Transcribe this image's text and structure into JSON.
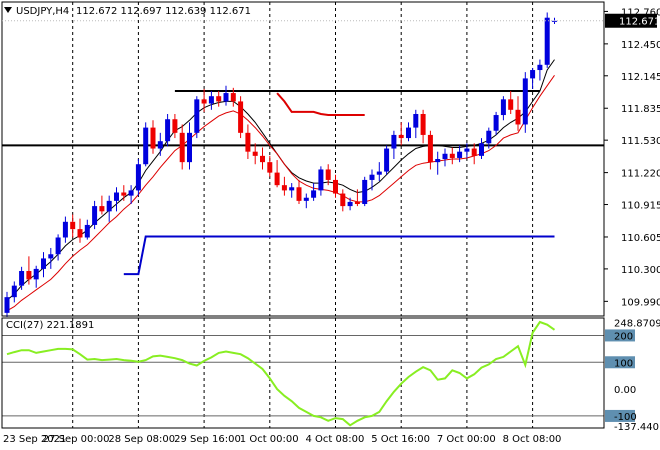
{
  "chart_data": [
    {
      "type": "candlestick",
      "title": "USDJPY,H4",
      "ohlc_label": "112.672 112.697 112.639 112.671",
      "current_price": "112.671",
      "ylim": [
        109.85,
        112.85
      ],
      "y_ticks": [
        "112.760",
        "112.450",
        "112.145",
        "111.835",
        "111.530",
        "111.220",
        "110.915",
        "110.605",
        "110.300",
        "109.990"
      ],
      "x_labels": [
        "23 Sep 2021",
        "27 Sep 00:00",
        "28 Sep 08:00",
        "29 Sep 16:00",
        "1 Oct 00:00",
        "4 Oct 08:00",
        "5 Oct 16:00",
        "7 Oct 00:00",
        "8 Oct 08:00"
      ],
      "horizontal_lines": [
        111.48,
        112.0
      ],
      "bullish_color": "#0000dd",
      "bearish_color": "#ee0000",
      "candles": [
        [
          0,
          109.88,
          110.08,
          109.84,
          110.03
        ],
        [
          1,
          110.03,
          110.18,
          109.98,
          110.14
        ],
        [
          2,
          110.14,
          110.32,
          110.1,
          110.28
        ],
        [
          3,
          110.28,
          110.42,
          110.15,
          110.2
        ],
        [
          4,
          110.2,
          110.33,
          110.12,
          110.3
        ],
        [
          5,
          110.3,
          110.46,
          110.22,
          110.4
        ],
        [
          6,
          110.4,
          110.5,
          110.3,
          110.44
        ],
        [
          7,
          110.44,
          110.63,
          110.38,
          110.6
        ],
        [
          8,
          110.6,
          110.8,
          110.55,
          110.75
        ],
        [
          9,
          110.75,
          110.82,
          110.6,
          110.68
        ],
        [
          10,
          110.68,
          110.78,
          110.55,
          110.6
        ],
        [
          11,
          110.6,
          110.77,
          110.58,
          110.72
        ],
        [
          12,
          110.72,
          110.95,
          110.68,
          110.9
        ],
        [
          13,
          110.9,
          111.0,
          110.82,
          110.85
        ],
        [
          14,
          110.85,
          111.0,
          110.75,
          110.95
        ],
        [
          15,
          110.95,
          111.08,
          110.85,
          111.03
        ],
        [
          16,
          111.03,
          111.1,
          110.95,
          111.0
        ],
        [
          17,
          111.0,
          111.1,
          110.92,
          111.05
        ],
        [
          18,
          111.05,
          111.35,
          111.0,
          111.3
        ],
        [
          19,
          111.3,
          111.7,
          111.28,
          111.65
        ],
        [
          20,
          111.65,
          111.72,
          111.4,
          111.45
        ],
        [
          21,
          111.45,
          111.6,
          111.38,
          111.52
        ],
        [
          22,
          111.52,
          111.78,
          111.47,
          111.73
        ],
        [
          23,
          111.73,
          111.78,
          111.55,
          111.6
        ],
        [
          24,
          111.6,
          111.68,
          111.25,
          111.32
        ],
        [
          25,
          111.32,
          111.7,
          111.25,
          111.6
        ],
        [
          26,
          111.6,
          111.95,
          111.55,
          111.92
        ],
        [
          27,
          111.92,
          112.02,
          111.8,
          111.88
        ],
        [
          28,
          111.88,
          112.0,
          111.82,
          111.95
        ],
        [
          29,
          111.95,
          112.0,
          111.85,
          111.9
        ],
        [
          30,
          111.9,
          112.05,
          111.86,
          111.98
        ],
        [
          31,
          111.98,
          112.03,
          111.85,
          111.9
        ],
        [
          32,
          111.9,
          111.95,
          111.55,
          111.6
        ],
        [
          33,
          111.6,
          111.68,
          111.35,
          111.42
        ],
        [
          34,
          111.42,
          111.5,
          111.3,
          111.38
        ],
        [
          35,
          111.38,
          111.46,
          111.25,
          111.32
        ],
        [
          36,
          111.32,
          111.38,
          111.18,
          111.22
        ],
        [
          37,
          111.22,
          111.34,
          111.08,
          111.1
        ],
        [
          38,
          111.1,
          111.18,
          111.0,
          111.05
        ],
        [
          39,
          111.05,
          111.12,
          110.98,
          111.08
        ],
        [
          40,
          111.08,
          111.15,
          110.92,
          110.95
        ],
        [
          41,
          110.95,
          111.02,
          110.88,
          110.98
        ],
        [
          42,
          110.98,
          111.12,
          110.95,
          111.05
        ],
        [
          43,
          111.05,
          111.28,
          111.0,
          111.25
        ],
        [
          44,
          111.25,
          111.3,
          111.1,
          111.15
        ],
        [
          45,
          111.15,
          111.2,
          110.98,
          111.02
        ],
        [
          46,
          111.02,
          111.06,
          110.85,
          110.9
        ],
        [
          47,
          110.9,
          110.98,
          110.86,
          110.94
        ],
        [
          48,
          110.94,
          111.06,
          110.9,
          110.92
        ],
        [
          49,
          110.92,
          111.18,
          110.9,
          111.15
        ],
        [
          50,
          111.15,
          111.25,
          111.05,
          111.2
        ],
        [
          51,
          111.2,
          111.32,
          111.14,
          111.23
        ],
        [
          52,
          111.23,
          111.48,
          111.2,
          111.45
        ],
        [
          53,
          111.45,
          111.62,
          111.35,
          111.58
        ],
        [
          54,
          111.58,
          111.7,
          111.48,
          111.55
        ],
        [
          55,
          111.55,
          111.7,
          111.52,
          111.65
        ],
        [
          56,
          111.65,
          111.82,
          111.55,
          111.78
        ],
        [
          57,
          111.78,
          111.82,
          111.5,
          111.58
        ],
        [
          58,
          111.58,
          111.62,
          111.25,
          111.32
        ],
        [
          59,
          111.32,
          111.42,
          111.2,
          111.35
        ],
        [
          60,
          111.35,
          111.45,
          111.28,
          111.4
        ],
        [
          61,
          111.4,
          111.46,
          111.3,
          111.36
        ],
        [
          62,
          111.36,
          111.48,
          111.32,
          111.42
        ],
        [
          63,
          111.42,
          111.5,
          111.36,
          111.45
        ],
        [
          64,
          111.45,
          111.5,
          111.3,
          111.38
        ],
        [
          65,
          111.38,
          111.55,
          111.35,
          111.5
        ],
        [
          66,
          111.5,
          111.65,
          111.45,
          111.62
        ],
        [
          67,
          111.62,
          111.8,
          111.58,
          111.77
        ],
        [
          68,
          111.77,
          111.95,
          111.72,
          111.92
        ],
        [
          69,
          111.92,
          112.0,
          111.78,
          111.82
        ],
        [
          70,
          111.82,
          111.95,
          111.62,
          111.68
        ],
        [
          71,
          111.68,
          112.18,
          111.6,
          112.12
        ],
        [
          72,
          112.12,
          112.22,
          112.02,
          112.2
        ],
        [
          73,
          112.2,
          112.3,
          112.1,
          112.25
        ],
        [
          74,
          112.25,
          112.75,
          112.22,
          112.7
        ],
        [
          75,
          112.67,
          112.7,
          112.64,
          112.67
        ]
      ],
      "series": [
        {
          "color": "#000000",
          "values": [
            110.0,
            110.06,
            110.14,
            110.2,
            110.25,
            110.31,
            110.37,
            110.44,
            110.52,
            110.58,
            110.62,
            110.67,
            110.74,
            110.8,
            110.86,
            110.92,
            110.98,
            111.03,
            111.12,
            111.24,
            111.33,
            111.42,
            111.53,
            111.62,
            111.66,
            111.72,
            111.79,
            111.84,
            111.87,
            111.89,
            111.9,
            111.9,
            111.85,
            111.78,
            111.7,
            111.6,
            111.5,
            111.4,
            111.3,
            111.22,
            111.17,
            111.14,
            111.12,
            111.12,
            111.13,
            111.12,
            111.1,
            111.06,
            111.03,
            111.04,
            111.08,
            111.13,
            111.2,
            111.27,
            111.34,
            111.4,
            111.45,
            111.47,
            111.48,
            111.48,
            111.47,
            111.46,
            111.46,
            111.47,
            111.48,
            111.5,
            111.53,
            111.58,
            111.65,
            111.7,
            111.74,
            111.8,
            111.9,
            112.0,
            112.2,
            112.3
          ]
        },
        {
          "color": "#dd0000",
          "values": [
            109.9,
            109.94,
            110.0,
            110.05,
            110.1,
            110.15,
            110.2,
            110.27,
            110.35,
            110.42,
            110.48,
            110.53,
            110.6,
            110.67,
            110.74,
            110.8,
            110.87,
            110.93,
            111.01,
            111.1,
            111.18,
            111.27,
            111.35,
            111.43,
            111.48,
            111.54,
            111.6,
            111.66,
            111.71,
            111.76,
            111.79,
            111.81,
            111.78,
            111.72,
            111.65,
            111.57,
            111.48,
            111.4,
            111.3,
            111.21,
            111.14,
            111.1,
            111.07,
            111.06,
            111.05,
            111.03,
            111.0,
            110.96,
            110.94,
            110.94,
            110.96,
            111.0,
            111.06,
            111.12,
            111.18,
            111.24,
            111.29,
            111.31,
            111.32,
            111.33,
            111.34,
            111.35,
            111.35,
            111.36,
            111.38,
            111.4,
            111.43,
            111.48,
            111.55,
            111.58,
            111.6,
            111.72,
            111.84,
            111.95,
            112.05,
            112.15
          ]
        },
        {
          "color": "#0000cc",
          "width": 2,
          "values": [
            null,
            null,
            null,
            null,
            null,
            null,
            null,
            null,
            null,
            null,
            null,
            null,
            null,
            null,
            null,
            null,
            110.25,
            110.25,
            110.25,
            110.61,
            110.61,
            110.61,
            110.61,
            110.61,
            110.61,
            110.61,
            110.61,
            110.61,
            110.61,
            110.61,
            110.61,
            110.61,
            110.61,
            110.61,
            110.61,
            110.61,
            110.61,
            110.61,
            110.61,
            110.61,
            110.61,
            110.61,
            110.61,
            110.61,
            110.61,
            110.61,
            110.61,
            110.61,
            110.61,
            110.61,
            110.61,
            110.61,
            110.61,
            110.61,
            110.61,
            110.61,
            110.61,
            110.61,
            110.61,
            110.61,
            110.61,
            110.61,
            110.61,
            110.61,
            110.61,
            110.61,
            110.61,
            110.61,
            110.61,
            110.61,
            110.61,
            110.61,
            110.61,
            110.61,
            110.61,
            110.61
          ]
        },
        {
          "color": "#dd0000",
          "width": 2,
          "values": [
            null,
            null,
            null,
            null,
            null,
            null,
            null,
            null,
            null,
            null,
            null,
            null,
            null,
            null,
            null,
            null,
            null,
            null,
            null,
            null,
            null,
            null,
            null,
            null,
            null,
            null,
            null,
            null,
            null,
            null,
            null,
            null,
            null,
            null,
            null,
            null,
            null,
            111.98,
            111.9,
            111.8,
            111.8,
            111.8,
            111.8,
            111.78,
            111.77,
            111.77,
            111.77,
            111.77,
            111.77,
            111.77,
            null,
            null,
            null,
            null,
            null,
            null,
            null,
            null,
            null,
            null,
            null,
            null,
            null,
            null,
            null,
            null,
            null,
            null,
            null,
            null,
            null,
            null,
            null,
            null,
            null,
            null
          ]
        }
      ]
    },
    {
      "type": "line",
      "title": "CCI(27) 221.1891",
      "ylim": [
        -145,
        265
      ],
      "y_ticks": [
        "248.8709",
        "200",
        "100",
        "0.00",
        "-100",
        "-137.4401"
      ],
      "reference_levels": [
        200,
        100,
        -100
      ],
      "series": [
        {
          "name": "CCI(27)",
          "color": "#88ee22",
          "values": [
            130,
            138,
            145,
            145,
            135,
            140,
            145,
            150,
            150,
            148,
            130,
            110,
            112,
            108,
            110,
            112,
            108,
            106,
            102,
            108,
            122,
            125,
            120,
            115,
            108,
            95,
            88,
            105,
            118,
            135,
            140,
            135,
            130,
            115,
            95,
            75,
            40,
            0,
            -25,
            -45,
            -70,
            -85,
            -100,
            -105,
            -118,
            -108,
            -112,
            -135,
            -118,
            -105,
            -100,
            -85,
            -45,
            -10,
            20,
            45,
            65,
            82,
            70,
            35,
            40,
            70,
            60,
            40,
            55,
            80,
            92,
            112,
            120,
            140,
            160,
            90,
            210,
            250,
            240,
            221
          ]
        }
      ]
    }
  ]
}
